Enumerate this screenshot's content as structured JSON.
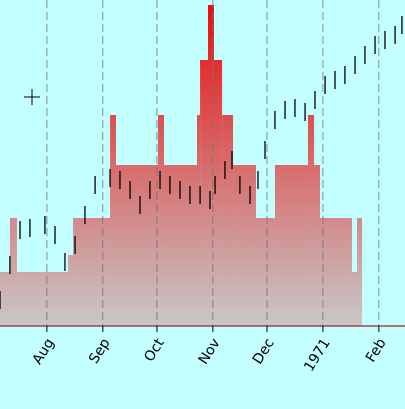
{
  "chart_data": [
    {
      "type": "histogram",
      "bins": [
        5,
        10.5,
        14.4,
        42.7,
        45.5,
        66,
        69.3,
        92.6,
        95.9,
        114.2,
        115.9,
        120.3,
        123.6,
        128.1,
        134.2,
        146.9,
        157.4,
        175.7,
        179.1,
        182.4,
        200.1,
        202.9,
        205.7
      ],
      "counts": [
        54,
        108,
        54,
        71,
        108,
        211,
        161,
        211,
        161,
        211,
        266,
        321,
        266,
        211,
        161,
        108,
        161,
        211,
        161,
        108,
        54,
        108
      ],
      "colors": [
        "#c8c8c8",
        "#d86a6a",
        "#e80a0a"
      ],
      "xlim": [
        5,
        229.5
      ],
      "ylim": [
        0,
        326
      ],
      "xticks": [
        {
          "value": 31,
          "label": "Aug"
        },
        {
          "value": 62,
          "label": "Sep"
        },
        {
          "value": 92,
          "label": "Oct"
        },
        {
          "value": 123,
          "label": "Nov"
        },
        {
          "value": 153,
          "label": "Dec"
        },
        {
          "value": 184,
          "label": "1971"
        },
        {
          "value": 215,
          "label": "Feb"
        }
      ],
      "grid": true
    },
    {
      "type": "ohlc",
      "x": [
        5,
        10.5,
        16.1,
        21.6,
        29.9,
        35.5,
        41,
        46.6,
        52.1,
        57.7,
        66,
        71.5,
        77.1,
        82.6,
        88.1,
        93.7,
        99.2,
        104.8,
        110.3,
        115.9,
        121.4,
        124.2,
        129.7,
        133.6,
        138,
        143.6,
        148,
        151.9,
        157.4,
        163,
        168.5,
        174.1,
        179.6,
        185.2,
        190.7,
        196.2,
        201.8,
        207.3,
        212.9,
        218.4,
        224,
        227.8
      ],
      "high": [
        35,
        70,
        105,
        107,
        110,
        100,
        73,
        90,
        120,
        150,
        157,
        155,
        145,
        130,
        145,
        155,
        150,
        145,
        140,
        140,
        135,
        150,
        165,
        175,
        150,
        140,
        155,
        185,
        215,
        225,
        227,
        223,
        235,
        250,
        255,
        260,
        270,
        280,
        290,
        295,
        300,
        310
      ],
      "low": [
        17,
        52,
        87,
        89,
        92,
        82,
        55,
        72,
        102,
        132,
        139,
        137,
        127,
        112,
        127,
        137,
        132,
        127,
        122,
        122,
        117,
        132,
        147,
        157,
        132,
        122,
        137,
        167,
        197,
        207,
        209,
        205,
        217,
        232,
        237,
        242,
        252,
        262,
        272,
        277,
        282,
        292
      ],
      "color": "#000000",
      "xlim": [
        5,
        229.5
      ],
      "ylim": [
        0,
        326
      ]
    }
  ]
}
